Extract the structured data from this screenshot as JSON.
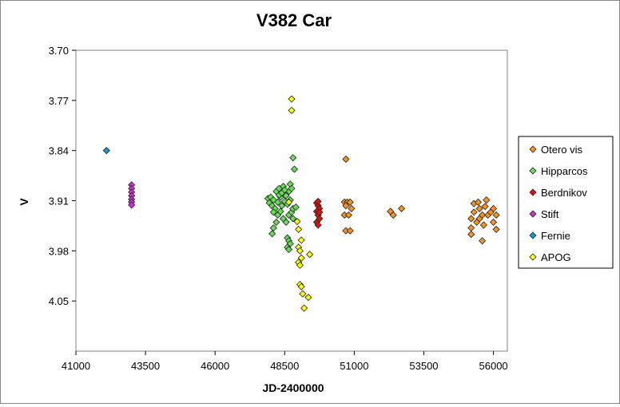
{
  "chart_data": {
    "type": "scatter",
    "title": "V382 Car",
    "xlabel": "JD-2400000",
    "ylabel": "V",
    "xlim": [
      41000,
      56500
    ],
    "ylim": [
      3.7,
      4.12
    ],
    "y_inverted": true,
    "x_ticks": [
      "41000",
      "43500",
      "46000",
      "48500",
      "51000",
      "53500",
      "56000"
    ],
    "y_ticks": [
      "3.70",
      "3.77",
      "3.84",
      "3.91",
      "3.98",
      "4.05"
    ],
    "x_tick_values": [
      41000,
      43500,
      46000,
      48500,
      51000,
      53500,
      56000
    ],
    "y_tick_values": [
      3.7,
      3.77,
      3.84,
      3.91,
      3.98,
      4.05
    ],
    "grid": false,
    "legend_position": "right",
    "marker": "diamond",
    "series": [
      {
        "name": "Otero vis",
        "color": "#f7941d",
        "points": [
          [
            50650,
            3.912
          ],
          [
            50750,
            3.912
          ],
          [
            50850,
            3.912
          ],
          [
            50700,
            3.917
          ],
          [
            50900,
            3.921
          ],
          [
            50650,
            3.93
          ],
          [
            50800,
            3.93
          ],
          [
            50700,
            3.952
          ],
          [
            50850,
            3.952
          ],
          [
            50700,
            3.852
          ],
          [
            52300,
            3.925
          ],
          [
            52400,
            3.93
          ],
          [
            52700,
            3.921
          ],
          [
            55200,
            3.935
          ],
          [
            55300,
            3.926
          ],
          [
            55400,
            3.94
          ],
          [
            55200,
            3.948
          ],
          [
            55300,
            3.914
          ],
          [
            55500,
            3.921
          ],
          [
            55500,
            3.935
          ],
          [
            55600,
            3.93
          ],
          [
            55650,
            3.944
          ],
          [
            55750,
            3.909
          ],
          [
            55800,
            3.93
          ],
          [
            55900,
            3.926
          ],
          [
            56000,
            3.921
          ],
          [
            56100,
            3.93
          ],
          [
            56000,
            3.94
          ],
          [
            56100,
            3.95
          ],
          [
            55600,
            3.966
          ],
          [
            55200,
            3.957
          ],
          [
            55700,
            3.918
          ],
          [
            55450,
            3.912
          ]
        ]
      },
      {
        "name": "Hipparcos",
        "color": "#66dd55",
        "points": [
          [
            47900,
            3.907
          ],
          [
            47950,
            3.913
          ],
          [
            48000,
            3.905
          ],
          [
            48050,
            3.917
          ],
          [
            48100,
            3.909
          ],
          [
            48150,
            3.921
          ],
          [
            48200,
            3.897
          ],
          [
            48250,
            3.912
          ],
          [
            48300,
            3.893
          ],
          [
            48350,
            3.905
          ],
          [
            48400,
            3.917
          ],
          [
            48450,
            3.89
          ],
          [
            48500,
            3.911
          ],
          [
            48550,
            3.903
          ],
          [
            48600,
            3.915
          ],
          [
            48650,
            3.897
          ],
          [
            48700,
            3.909
          ],
          [
            48250,
            3.93
          ],
          [
            48350,
            3.925
          ],
          [
            48450,
            3.935
          ],
          [
            48550,
            3.94
          ],
          [
            48650,
            3.93
          ],
          [
            48750,
            3.926
          ],
          [
            48800,
            3.921
          ],
          [
            48900,
            3.919
          ],
          [
            48100,
            3.948
          ],
          [
            48200,
            3.94
          ],
          [
            48050,
            3.956
          ],
          [
            48600,
            3.962
          ],
          [
            48650,
            3.966
          ],
          [
            48700,
            3.97
          ],
          [
            48600,
            3.975
          ],
          [
            48650,
            3.978
          ],
          [
            48800,
            3.85
          ],
          [
            48850,
            3.866
          ],
          [
            48300,
            3.902
          ],
          [
            48400,
            3.899
          ],
          [
            48500,
            3.895
          ],
          [
            48700,
            3.887
          ],
          [
            48750,
            3.893
          ],
          [
            48100,
            3.926
          ],
          [
            48800,
            3.935
          ]
        ]
      },
      {
        "name": "Berdnikov",
        "color": "#dd1111",
        "points": [
          [
            49650,
            3.913
          ],
          [
            49700,
            3.917
          ],
          [
            49750,
            3.921
          ],
          [
            49650,
            3.925
          ],
          [
            49700,
            3.93
          ],
          [
            49750,
            3.935
          ],
          [
            49650,
            3.94
          ],
          [
            49700,
            3.944
          ],
          [
            49750,
            3.926
          ],
          [
            49700,
            3.911
          ]
        ]
      },
      {
        "name": "Stift",
        "color": "#cc33cc",
        "points": [
          [
            43000,
            3.888
          ],
          [
            43000,
            3.893
          ],
          [
            43000,
            3.898
          ],
          [
            43000,
            3.903
          ],
          [
            43000,
            3.908
          ],
          [
            43000,
            3.912
          ],
          [
            43000,
            3.916
          ]
        ]
      },
      {
        "name": "Fernie",
        "color": "#1199dd",
        "points": [
          [
            42100,
            3.84
          ]
        ]
      },
      {
        "name": "APOG",
        "color": "#ffff00",
        "points": [
          [
            48750,
            3.768
          ],
          [
            48750,
            3.784
          ],
          [
            48950,
            3.939
          ],
          [
            49000,
            3.975
          ],
          [
            49050,
            3.98
          ],
          [
            49100,
            3.99
          ],
          [
            49000,
            3.996
          ],
          [
            49050,
            4.0
          ],
          [
            49400,
            3.985
          ],
          [
            49050,
            4.027
          ],
          [
            49100,
            4.03
          ],
          [
            49150,
            4.04
          ],
          [
            49350,
            4.045
          ],
          [
            49200,
            4.06
          ],
          [
            49000,
            3.95
          ],
          [
            49100,
            3.965
          ],
          [
            48650,
            3.912
          ]
        ]
      }
    ]
  }
}
